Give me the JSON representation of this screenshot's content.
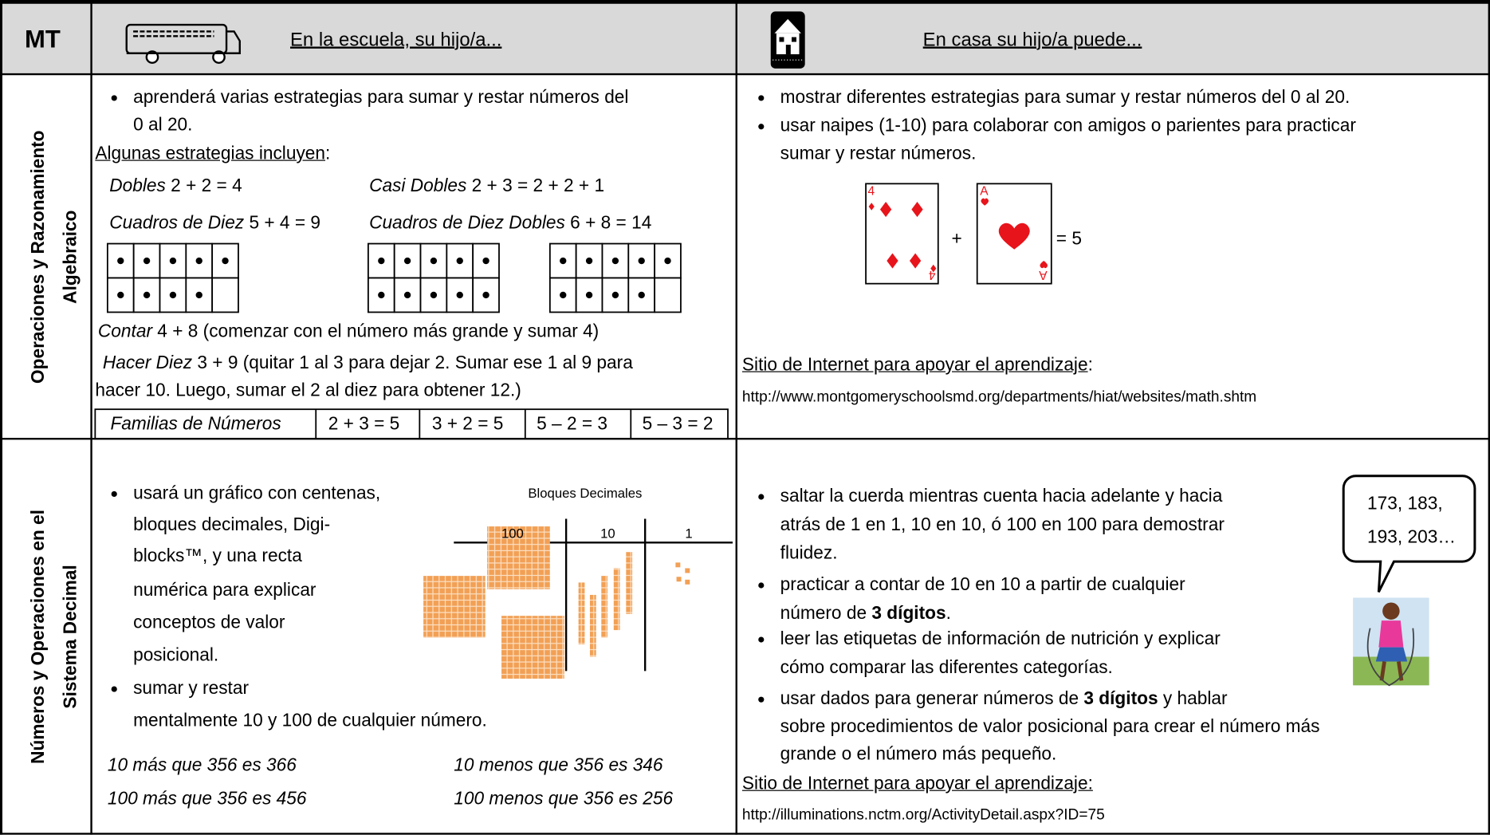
{
  "header": {
    "code": "MT",
    "school": "En la escuela, su hijo/a...",
    "home": "En casa su hijo/a puede..."
  },
  "rows": [
    {
      "domain": [
        "Operaciones y Razonamiento",
        "Algebraico"
      ],
      "school": {
        "bullet": [
          "aprenderá varias estrategias para sumar y restar números del",
          "0 al 20."
        ],
        "heading": "Algunas estrategias incluyen",
        "heading_colon": ":",
        "strategies": [
          {
            "name": "Dobles",
            "expr": "2 + 2 = 4"
          },
          {
            "name": "Casi Dobles",
            "expr": "2 + 3 = 2 + 2 + 1"
          },
          {
            "name": "Cuadros de Diez",
            "expr": "5 + 4 = 9"
          },
          {
            "name": "Cuadros de Diez Dobles",
            "expr": "6 + 8 = 14"
          }
        ],
        "contar": {
          "name": "Contar",
          "expr": "4 + 8 (comenzar con el número más grande y sumar 4)"
        },
        "hacer_diez": {
          "name": "Hacer Diez",
          "expr": "3 + 9 (quitar 1 al 3 para dejar 2.  Sumar ese 1 al 9 para",
          "more": "hacer 10.  Luego, sumar el 2 al diez para obtener 12.)"
        },
        "families": [
          "Familias de Números",
          "2 + 3 = 5",
          "3 + 2 = 5",
          "5 – 2 = 3",
          "5 – 3 = 2"
        ]
      },
      "home": {
        "bullets": [
          [
            "mostrar diferentes estrategias para sumar y restar números del 0 al 20."
          ],
          [
            "usar naipes (1-10) para colaborar con amigos o parientes para practicar",
            "sumar y restar números."
          ]
        ],
        "cards": {
          "first": "4",
          "second": "A",
          "plus": "+",
          "result": "= 5"
        },
        "link_label": "Sitio de Internet para apoyar el aprendizaje",
        "link_colon": ":",
        "url": "http://www.montgomeryschoolsmd.org/departments/hiat/websites/math.shtm"
      }
    },
    {
      "domain": [
        "Números y Operaciones en el",
        "Sistema Decimal"
      ],
      "school": {
        "bullet": [
          "usará un gráfico con centenas,",
          "bloques decimales, Digi-",
          "blocks™, y una recta",
          "numérica para explicar",
          "conceptos de valor",
          "posicional."
        ],
        "figure": {
          "title": "Bloques Decimales",
          "columns": [
            "100",
            "10",
            "1"
          ]
        },
        "bullet2": [
          "sumar y restar",
          "mentalmente 10 y 100 de cualquier número."
        ],
        "examples": [
          "10 más que 356 es 366",
          "10 menos que 356 es 346",
          "100 más que 356 es 456",
          "100 menos que 356 es 256"
        ]
      },
      "home": {
        "bullets": [
          [
            [
              "saltar la cuerda mientras cuenta hacia adelante y hacia"
            ],
            [
              "atrás de 1 en 1, 10 en 10, ó 100 en 100 para demostrar"
            ],
            [
              "fluidez."
            ]
          ],
          [
            [
              "practicar a contar de 10 en 10 a partir de cualquier"
            ],
            [
              "número de ",
              {
                "bold": "3 dígitos"
              },
              "."
            ]
          ],
          [
            [
              "leer las etiquetas de información de nutrición y explicar"
            ],
            [
              "cómo comparar las diferentes categorías."
            ]
          ],
          [
            [
              "usar dados para generar números de ",
              {
                "bold": "3 dígitos"
              },
              " y hablar"
            ],
            [
              "sobre procedimientos de valor posicional para crear el número más"
            ],
            [
              "grande o el número más pequeño."
            ]
          ]
        ],
        "speech": [
          "173, 183,",
          "193, 203…"
        ],
        "link_label": "Sitio de Internet para apoyar el aprendizaje:",
        "url": "http://illuminations.nctm.org/ActivityDetail.aspx?ID=75"
      }
    }
  ]
}
